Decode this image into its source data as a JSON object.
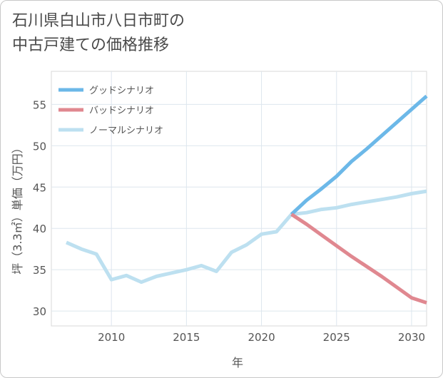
{
  "title_lines": [
    "石川県白山市八日市町の",
    "中古戸建ての価格推移"
  ],
  "chart_data": {
    "type": "line",
    "xlabel": "年",
    "ylabel": "坪（3.3㎡）単価（万円）",
    "xlim": [
      2006,
      2031
    ],
    "ylim": [
      28.2,
      59
    ],
    "xticks": [
      2010,
      2015,
      2020,
      2025,
      2030
    ],
    "yticks": [
      30,
      35,
      40,
      45,
      50,
      55
    ],
    "grid": true,
    "legend_position": "top-left",
    "series": [
      {
        "name": "グッドシナリオ",
        "color": "#6cb8e8",
        "x": [
          2022,
          2023,
          2024,
          2025,
          2026,
          2027,
          2028,
          2029,
          2030,
          2031
        ],
        "y": [
          41.7,
          43.4,
          44.8,
          46.3,
          48.1,
          49.6,
          51.2,
          52.8,
          54.4,
          56.0
        ]
      },
      {
        "name": "バッドシナリオ",
        "color": "#e08890",
        "x": [
          2022,
          2023,
          2024,
          2025,
          2026,
          2027,
          2028,
          2029,
          2030,
          2031
        ],
        "y": [
          41.7,
          40.5,
          39.2,
          37.9,
          36.6,
          35.4,
          34.2,
          32.9,
          31.6,
          31.0
        ]
      },
      {
        "name": "ノーマルシナリオ",
        "color": "#bde0f0",
        "x": [
          2007,
          2008,
          2009,
          2010,
          2011,
          2012,
          2013,
          2014,
          2015,
          2016,
          2017,
          2018,
          2019,
          2020,
          2021,
          2022,
          2023,
          2024,
          2025,
          2026,
          2027,
          2028,
          2029,
          2030,
          2031
        ],
        "y": [
          38.3,
          37.5,
          36.9,
          33.8,
          34.3,
          33.5,
          34.2,
          34.6,
          35.0,
          35.5,
          34.8,
          37.1,
          38.0,
          39.3,
          39.6,
          41.7,
          41.9,
          42.3,
          42.5,
          42.9,
          43.2,
          43.5,
          43.8,
          44.2,
          44.5
        ]
      }
    ]
  }
}
